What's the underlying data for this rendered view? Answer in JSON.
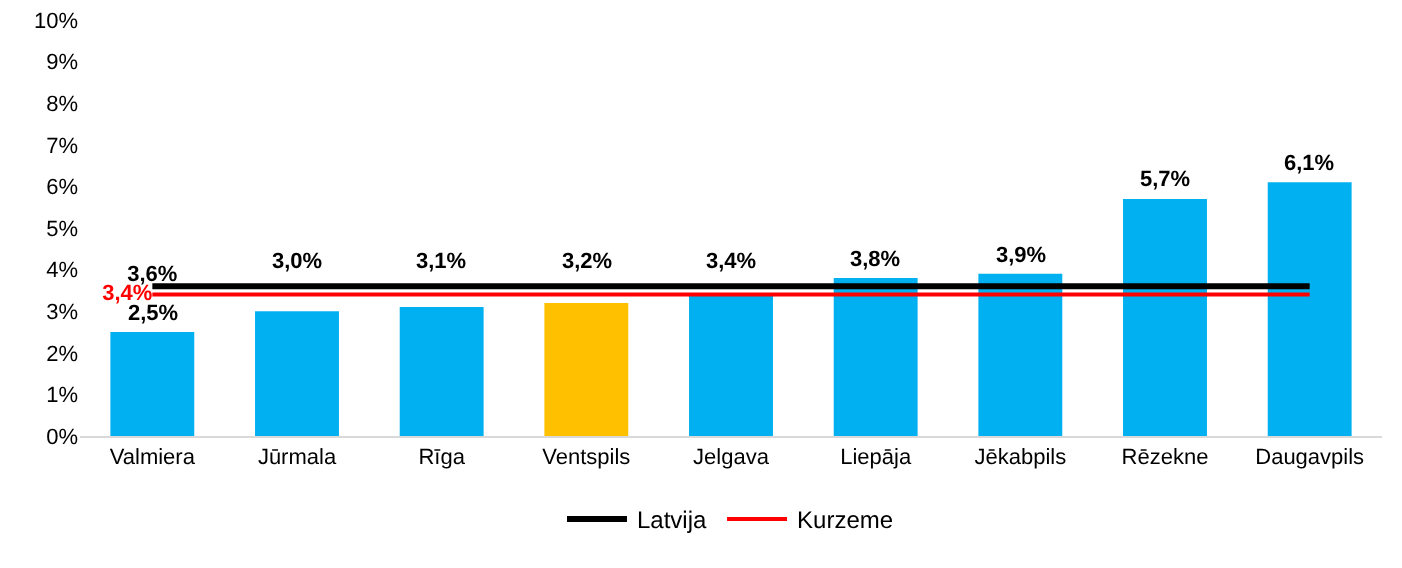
{
  "chart_data": {
    "type": "bar",
    "categories": [
      "Valmiera",
      "Jūrmala",
      "Rīga",
      "Ventspils",
      "Jelgava",
      "Liepāja",
      "Jēkabpils",
      "Rēzekne",
      "Daugavpils"
    ],
    "series": [
      {
        "colors": [
          "#00b0f0",
          "#00b0f0",
          "#00b0f0",
          "#ffc000",
          "#00b0f0",
          "#00b0f0",
          "#00b0f0",
          "#00b0f0",
          "#00b0f0"
        ],
        "values": [
          2.5,
          3.0,
          3.1,
          3.2,
          3.4,
          3.8,
          3.9,
          5.7,
          6.1
        ],
        "value_labels": [
          "2,5%",
          "3,0%",
          "3,1%",
          "3,2%",
          "3,4%",
          "3,8%",
          "3,9%",
          "5,7%",
          "6,1%"
        ]
      },
      {
        "type": "line",
        "name": "Latvija",
        "color": "#000000",
        "values": [
          3.6,
          3.6,
          3.6,
          3.6,
          3.6,
          3.6,
          3.6,
          3.6,
          3.6
        ],
        "value_labels": [
          "3,6%",
          null,
          null,
          null,
          null,
          null,
          null,
          null,
          null
        ]
      },
      {
        "type": "line",
        "name": "Kurzeme",
        "color": "#ff0000",
        "values": [
          3.4,
          3.4,
          3.4,
          3.4,
          3.4,
          3.4,
          3.4,
          3.4,
          3.4
        ],
        "value_labels": [
          "3,4%",
          null,
          null,
          null,
          null,
          null,
          null,
          null,
          null
        ]
      }
    ],
    "ylim": [
      0,
      10
    ],
    "yticks": [
      {
        "value": 0,
        "label": "0%"
      },
      {
        "value": 1,
        "label": "1%"
      },
      {
        "value": 2,
        "label": "2%"
      },
      {
        "value": 3,
        "label": "3%"
      },
      {
        "value": 4,
        "label": "4%"
      },
      {
        "value": 5,
        "label": "5%"
      },
      {
        "value": 6,
        "label": "6%"
      },
      {
        "value": 7,
        "label": "7%"
      },
      {
        "value": 8,
        "label": "8%"
      },
      {
        "value": 9,
        "label": "9%"
      },
      {
        "value": 10,
        "label": "10%"
      }
    ],
    "grid": false,
    "legend": "bottom"
  }
}
